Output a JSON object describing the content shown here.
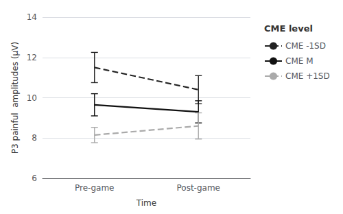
{
  "chart_data": {
    "type": "line",
    "xlabel": "Time",
    "ylabel": "P3 painful  amplitudes (μV)",
    "categories": [
      "Pre-game",
      "Post-game"
    ],
    "series": [
      {
        "name": "CME -1SD",
        "color": "#222222",
        "line_style": "dashed",
        "values": [
          11.5,
          10.4
        ],
        "errors": [
          0.75,
          0.7
        ]
      },
      {
        "name": "CME M",
        "color": "#111111",
        "line_style": "solid",
        "values": [
          9.65,
          9.3
        ],
        "errors": [
          0.55,
          0.55
        ]
      },
      {
        "name": "CME +1SD",
        "color": "#aaaaaa",
        "line_style": "dashed",
        "values": [
          8.15,
          8.6
        ],
        "errors": [
          0.38,
          0.65
        ]
      }
    ],
    "ylim": [
      6,
      14
    ],
    "yticks": [
      6,
      8,
      10,
      12,
      14
    ],
    "grid": true,
    "legend": "right",
    "legend_title": "CME level"
  }
}
